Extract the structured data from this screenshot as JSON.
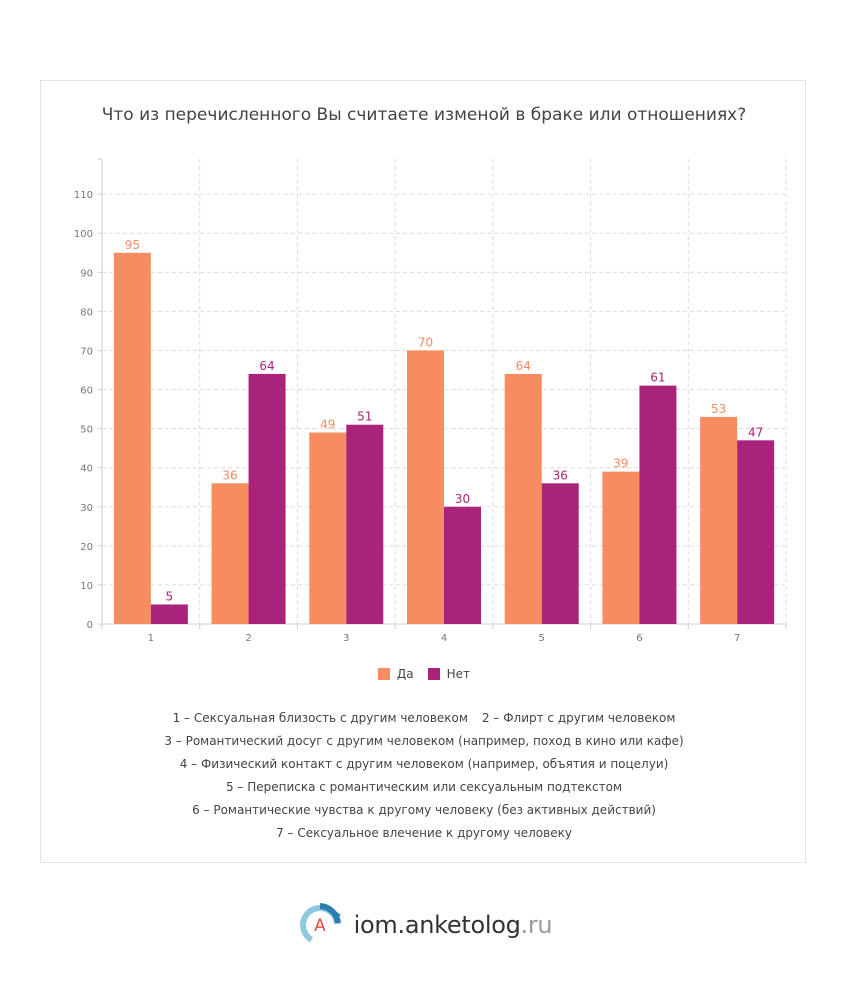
{
  "chart_data": {
    "type": "bar",
    "title": "Что из перечисленного Вы считаете изменой в браке или отношениях?",
    "categories": [
      "1",
      "2",
      "3",
      "4",
      "5",
      "6",
      "7"
    ],
    "series": [
      {
        "name": "Да",
        "color": "#f68c60",
        "values": [
          95,
          36,
          49,
          70,
          64,
          39,
          53
        ]
      },
      {
        "name": "Нет",
        "color": "#a9237a",
        "values": [
          5,
          64,
          51,
          30,
          36,
          61,
          47
        ]
      }
    ],
    "yticks": [
      0,
      10,
      20,
      30,
      40,
      50,
      60,
      70,
      80,
      90,
      100,
      110
    ],
    "ylim": [
      0,
      119
    ],
    "grid": true,
    "legend": "bottom",
    "xlabel": "",
    "ylabel": ""
  },
  "notes": {
    "row1a": "1 – Сексуальная близость с другим человеком",
    "row1b": "2 – Флирт с другим человеком",
    "row2": "3 – Романтический досуг с другим человеком (например, поход в кино или кафе)",
    "row3": "4 – Физический контакт с другим человеком (например, объятия и поцелуи)",
    "row4": "5 – Переписка с романтическим или сексуальным подтекстом",
    "row5": "6 – Романтические чувства к другому человеку (без активных действий)",
    "row6": "7 – Сексуальное влечение к другому человеку"
  },
  "footer": {
    "logo_letter": "A",
    "brand": "iom.anketolog",
    "tld": ".ru"
  },
  "colors": {
    "accent_blue": "#2a7fb0",
    "light_blue": "#8ec9e0",
    "logo_letter": "#e84b3c"
  }
}
